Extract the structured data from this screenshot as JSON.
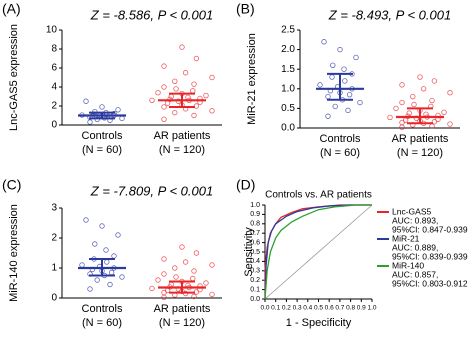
{
  "chart_data": [
    {
      "type": "dot",
      "panel_label": "(A)",
      "annotation": "Z = -8.586, P < 0.001",
      "y_label": "Lnc-GAS5 expression",
      "categories": [
        "Controls",
        "AR patients"
      ],
      "category_notes": [
        "(N = 60)",
        "(N = 120)"
      ],
      "ylim": [
        0,
        10
      ],
      "yticks": [
        0,
        2,
        4,
        6,
        8,
        10
      ],
      "groups": [
        {
          "color": "#2b3a9e",
          "median": 1.0,
          "q1": 0.7,
          "q3": 1.3,
          "values": [
            0.3,
            0.5,
            0.6,
            0.7,
            0.75,
            0.8,
            0.85,
            0.9,
            0.95,
            1.0,
            1.0,
            1.05,
            1.1,
            1.15,
            1.2,
            1.3,
            1.4,
            1.6,
            1.9,
            2.5
          ]
        },
        {
          "color": "#e8262a",
          "median": 2.6,
          "q1": 1.9,
          "q3": 3.3,
          "values": [
            0.6,
            1.0,
            1.3,
            1.5,
            1.7,
            1.9,
            2.0,
            2.1,
            2.3,
            2.4,
            2.5,
            2.6,
            2.6,
            2.7,
            2.8,
            2.9,
            3.0,
            3.1,
            3.3,
            3.4,
            3.6,
            3.8,
            4.0,
            4.3,
            4.6,
            5.0,
            5.5,
            6.2,
            7.0,
            8.2
          ]
        }
      ]
    },
    {
      "type": "dot",
      "panel_label": "(B)",
      "annotation": "Z = -8.493, P < 0.001",
      "y_label": "MiR-21 expression",
      "categories": [
        "Controls",
        "AR patients"
      ],
      "category_notes": [
        "(N = 60)",
        "(N = 120)"
      ],
      "ylim": [
        0,
        2.5
      ],
      "yticks": [
        {
          "value": 0,
          "label": "0.0"
        },
        {
          "value": 0.5,
          "label": "0.5"
        },
        {
          "value": 1,
          "label": "1.0"
        },
        {
          "value": 1.5,
          "label": "1.5"
        },
        {
          "value": 2,
          "label": "2.0"
        },
        {
          "value": 2.5,
          "label": "2.5"
        }
      ],
      "groups": [
        {
          "color": "#2b3a9e",
          "median": 1.0,
          "q1": 0.72,
          "q3": 1.38,
          "values": [
            0.3,
            0.45,
            0.55,
            0.65,
            0.72,
            0.8,
            0.85,
            0.9,
            0.95,
            1.0,
            1.05,
            1.1,
            1.2,
            1.3,
            1.38,
            1.5,
            1.6,
            1.8,
            2.0,
            2.2
          ]
        },
        {
          "color": "#e8262a",
          "median": 0.28,
          "q1": 0.12,
          "q3": 0.5,
          "values": [
            0.02,
            0.05,
            0.08,
            0.1,
            0.12,
            0.14,
            0.16,
            0.18,
            0.2,
            0.22,
            0.25,
            0.27,
            0.28,
            0.3,
            0.32,
            0.35,
            0.38,
            0.4,
            0.45,
            0.5,
            0.55,
            0.6,
            0.65,
            0.7,
            0.8,
            0.9,
            1.0,
            1.1,
            1.2,
            1.3
          ]
        }
      ]
    },
    {
      "type": "dot",
      "panel_label": "(C)",
      "annotation": "Z = -7.809, P < 0.001",
      "y_label": "MiR-140 expression",
      "categories": [
        "Controls",
        "AR patients"
      ],
      "category_notes": [
        "(N = 60)",
        "(N = 120)"
      ],
      "ylim": [
        0,
        3
      ],
      "yticks": [
        0,
        1,
        2,
        3
      ],
      "groups": [
        {
          "color": "#2b3a9e",
          "median": 1.0,
          "q1": 0.75,
          "q3": 1.3,
          "values": [
            0.3,
            0.45,
            0.6,
            0.7,
            0.75,
            0.8,
            0.85,
            0.9,
            0.95,
            1.0,
            1.05,
            1.1,
            1.2,
            1.3,
            1.4,
            1.6,
            1.8,
            2.1,
            2.4,
            2.6
          ]
        },
        {
          "color": "#e8262a",
          "median": 0.35,
          "q1": 0.18,
          "q3": 0.55,
          "values": [
            0.02,
            0.05,
            0.1,
            0.12,
            0.15,
            0.18,
            0.2,
            0.22,
            0.25,
            0.28,
            0.3,
            0.32,
            0.35,
            0.37,
            0.4,
            0.42,
            0.45,
            0.5,
            0.55,
            0.6,
            0.65,
            0.7,
            0.8,
            0.9,
            1.0,
            1.1,
            1.2,
            1.3,
            1.5,
            1.7
          ]
        }
      ]
    },
    {
      "type": "roc",
      "panel_label": "(D)",
      "title": "Controls vs. AR patients",
      "x_label": "1 - Specificity",
      "y_label": "Sensitivity",
      "xlim": [
        0,
        1
      ],
      "ylim": [
        0,
        1
      ],
      "xticks": [
        {
          "value": 0,
          "label": "0.0"
        },
        {
          "value": 0.1,
          "label": "0.1"
        },
        {
          "value": 0.2,
          "label": "0.2"
        },
        {
          "value": 0.3,
          "label": "0.3"
        },
        {
          "value": 0.4,
          "label": "0.4"
        },
        {
          "value": 0.5,
          "label": "0.5"
        },
        {
          "value": 0.6,
          "label": "0.6"
        },
        {
          "value": 0.7,
          "label": "0.7"
        },
        {
          "value": 0.8,
          "label": "0.8"
        },
        {
          "value": 0.9,
          "label": "0.9"
        },
        {
          "value": 1,
          "label": "1.0"
        }
      ],
      "yticks": [
        {
          "value": 0,
          "label": "0.0"
        },
        {
          "value": 0.1,
          "label": "0.1"
        },
        {
          "value": 0.2,
          "label": "0.2"
        },
        {
          "value": 0.3,
          "label": "0.3"
        },
        {
          "value": 0.4,
          "label": "0.4"
        },
        {
          "value": 0.5,
          "label": "0.5"
        },
        {
          "value": 0.6,
          "label": "0.6"
        },
        {
          "value": 0.7,
          "label": "0.7"
        },
        {
          "value": 0.8,
          "label": "0.8"
        },
        {
          "value": 0.9,
          "label": "0.9"
        },
        {
          "value": 1,
          "label": "1.0"
        }
      ],
      "series": [
        {
          "name": "Lnc-GAS5",
          "color": "#e8262a",
          "notes": [
            "AUC: 0.893,",
            "95%CI: 0.847-0.939"
          ],
          "x": [
            0,
            0,
            0.02,
            0.05,
            0.1,
            0.15,
            0.25,
            0.35,
            0.5,
            0.7,
            1
          ],
          "values": [
            0,
            0.3,
            0.55,
            0.7,
            0.8,
            0.87,
            0.92,
            0.96,
            0.98,
            1,
            1
          ]
        },
        {
          "name": "MiR-21",
          "color": "#2b3a9e",
          "notes": [
            "AUC: 0.889,",
            "95%CI: 0.839-0.939"
          ],
          "x": [
            0,
            0.01,
            0.03,
            0.06,
            0.1,
            0.2,
            0.3,
            0.45,
            0.6,
            0.8,
            1
          ],
          "values": [
            0,
            0.35,
            0.6,
            0.72,
            0.8,
            0.88,
            0.93,
            0.97,
            0.99,
            1,
            1
          ]
        },
        {
          "name": "MiR-140",
          "color": "#2ca02c",
          "notes": [
            "AUC: 0.857,",
            "95%CI: 0.803-0.912"
          ],
          "x": [
            0,
            0.02,
            0.05,
            0.1,
            0.15,
            0.25,
            0.35,
            0.5,
            0.65,
            0.85,
            1
          ],
          "values": [
            0,
            0.3,
            0.5,
            0.65,
            0.73,
            0.82,
            0.88,
            0.95,
            0.98,
            1,
            1
          ]
        }
      ]
    }
  ]
}
